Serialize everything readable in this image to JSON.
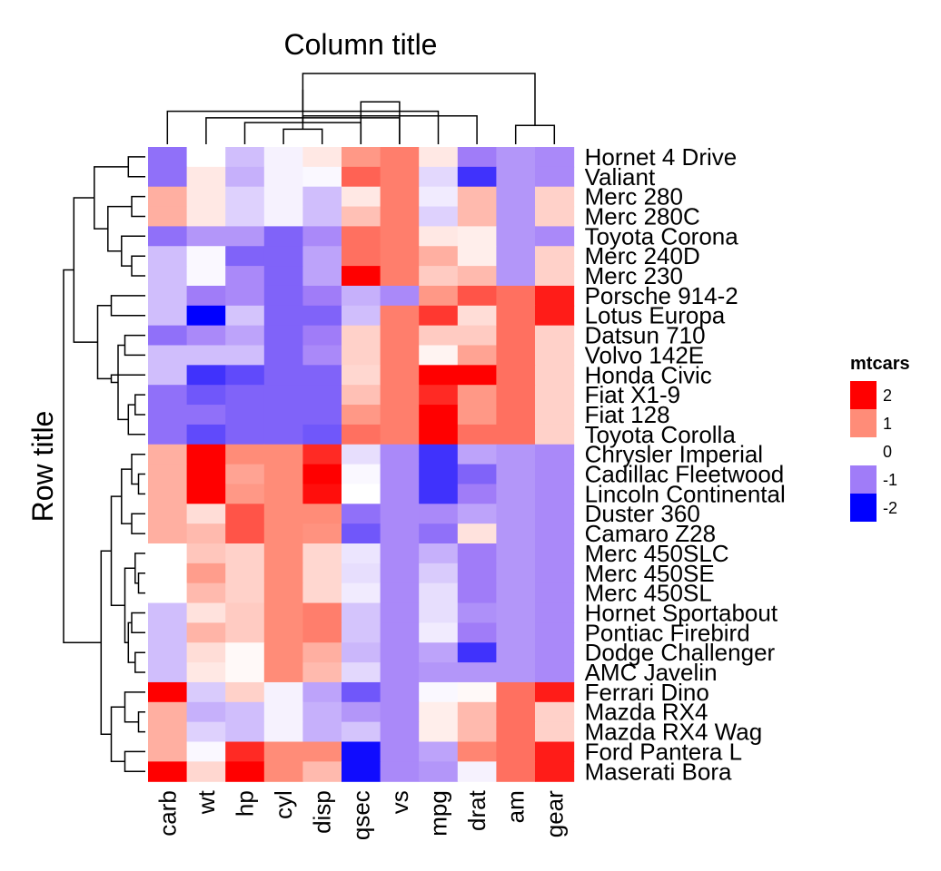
{
  "chart_data": {
    "type": "heatmap",
    "column_title": "Column title",
    "row_title": "Row title",
    "columns": [
      "carb",
      "wt",
      "hp",
      "cyl",
      "disp",
      "qsec",
      "vs",
      "mpg",
      "drat",
      "am",
      "gear"
    ],
    "rows": [
      "Hornet 4 Drive",
      "Valiant",
      "Merc 280",
      "Merc 280C",
      "Toyota Corona",
      "Merc 240D",
      "Merc 230",
      "Porsche 914-2",
      "Lotus Europa",
      "Datsun 710",
      "Volvo 142E",
      "Honda Civic",
      "Fiat X1-9",
      "Fiat 128",
      "Toyota Corolla",
      "Chrysler Imperial",
      "Cadillac Fleetwood",
      "Lincoln Continental",
      "Duster 360",
      "Camaro Z28",
      "Merc 450SLC",
      "Merc 450SE",
      "Merc 450SL",
      "Hornet Sportabout",
      "Pontiac Firebird",
      "Dodge Challenger",
      "AMC Javelin",
      "Ferrari Dino",
      "Mazda RX4",
      "Mazda RX4 Wag",
      "Ford Pantera L",
      "Maserati Bora"
    ],
    "values": [
      [
        -1.1,
        0.0,
        -0.5,
        -0.1,
        0.2,
        0.9,
        1.1,
        0.2,
        -1.0,
        -0.8,
        -0.9
      ],
      [
        -1.1,
        0.2,
        -0.6,
        -0.1,
        -0.05,
        1.3,
        1.1,
        -0.3,
        -1.6,
        -0.8,
        -0.9
      ],
      [
        0.7,
        0.2,
        -0.35,
        -0.1,
        -0.5,
        0.2,
        1.1,
        -0.15,
        0.6,
        -0.8,
        0.4
      ],
      [
        0.7,
        0.2,
        -0.35,
        -0.1,
        -0.5,
        0.55,
        1.1,
        -0.35,
        0.6,
        -0.8,
        0.4
      ],
      [
        -1.1,
        -0.8,
        -0.8,
        -1.2,
        -0.9,
        1.2,
        1.1,
        0.2,
        0.15,
        -0.8,
        -0.9
      ],
      [
        -0.5,
        -0.05,
        -1.2,
        -1.2,
        -0.7,
        1.2,
        1.1,
        0.7,
        0.15,
        -0.8,
        0.4
      ],
      [
        -0.5,
        -0.05,
        -0.9,
        -1.2,
        -0.7,
        2.8,
        1.1,
        0.45,
        0.6,
        -0.8,
        0.4
      ],
      [
        -0.5,
        -1.0,
        -0.9,
        -1.2,
        -1.0,
        -0.6,
        -0.9,
        0.9,
        1.4,
        1.2,
        1.8
      ],
      [
        -0.5,
        -2.0,
        -0.45,
        -1.2,
        -1.2,
        -0.5,
        1.1,
        1.6,
        0.3,
        1.2,
        1.8
      ],
      [
        -1.1,
        -0.9,
        -0.7,
        -1.2,
        -1.0,
        0.4,
        1.1,
        0.45,
        0.45,
        1.2,
        0.4
      ],
      [
        -0.5,
        -0.5,
        -0.5,
        -1.2,
        -0.9,
        0.4,
        1.1,
        0.1,
        0.8,
        1.2,
        0.4
      ],
      [
        -0.5,
        -1.6,
        -1.4,
        -1.2,
        -1.2,
        0.35,
        1.1,
        2.0,
        2.4,
        1.2,
        0.4
      ],
      [
        -1.1,
        -1.3,
        -1.2,
        -1.2,
        -1.2,
        0.55,
        1.1,
        1.7,
        0.9,
        1.2,
        0.4
      ],
      [
        -1.1,
        -1.1,
        -1.2,
        -1.2,
        -1.2,
        0.9,
        1.1,
        2.6,
        0.9,
        1.2,
        0.4
      ],
      [
        -1.1,
        -1.4,
        -1.2,
        -1.2,
        -1.3,
        1.2,
        1.1,
        2.6,
        1.2,
        1.2,
        0.4
      ],
      [
        0.7,
        2.2,
        1.0,
        1.0,
        1.7,
        -0.25,
        -0.9,
        -1.6,
        -0.7,
        -0.8,
        -0.9
      ],
      [
        0.7,
        2.4,
        0.8,
        1.0,
        2.0,
        -0.05,
        -0.9,
        -1.6,
        -1.2,
        -0.8,
        -0.9
      ],
      [
        0.7,
        2.3,
        0.9,
        1.0,
        1.9,
        0.0,
        -0.9,
        -1.6,
        -1.0,
        -0.8,
        -0.9
      ],
      [
        0.7,
        0.3,
        1.4,
        1.0,
        1.0,
        -1.1,
        -0.9,
        -0.9,
        -0.7,
        -0.8,
        -0.9
      ],
      [
        0.7,
        0.6,
        1.4,
        1.0,
        0.95,
        -1.3,
        -0.9,
        -1.1,
        0.25,
        -0.8,
        -0.9
      ],
      [
        0.0,
        0.5,
        0.4,
        1.0,
        0.35,
        -0.2,
        -0.9,
        -0.6,
        -1.0,
        -0.8,
        -0.9
      ],
      [
        0.0,
        0.85,
        0.4,
        1.0,
        0.35,
        -0.25,
        -0.9,
        -0.4,
        -1.0,
        -0.8,
        -0.9
      ],
      [
        0.0,
        0.6,
        0.4,
        1.0,
        0.35,
        -0.15,
        -0.9,
        -0.25,
        -1.0,
        -0.8,
        -0.9
      ],
      [
        -0.5,
        0.25,
        0.45,
        1.0,
        1.1,
        -0.45,
        -0.9,
        -0.25,
        -0.85,
        -0.8,
        -0.9
      ],
      [
        -0.5,
        0.65,
        0.45,
        1.0,
        1.1,
        -0.45,
        -0.9,
        -0.15,
        -1.0,
        -0.8,
        -0.9
      ],
      [
        -0.5,
        0.3,
        0.05,
        1.0,
        0.7,
        -0.55,
        -0.9,
        -0.7,
        -1.6,
        -0.8,
        -0.9
      ],
      [
        -0.5,
        0.2,
        0.05,
        1.0,
        0.6,
        -0.3,
        -0.9,
        -0.8,
        -0.8,
        -0.8,
        -0.9
      ],
      [
        2.0,
        -0.4,
        0.4,
        -0.1,
        -0.7,
        -1.3,
        -0.9,
        -0.05,
        0.05,
        1.2,
        1.8
      ],
      [
        0.7,
        -0.6,
        -0.5,
        -0.1,
        -0.6,
        -0.8,
        -0.9,
        0.15,
        0.6,
        1.2,
        0.4
      ],
      [
        0.7,
        -0.35,
        -0.5,
        -0.1,
        -0.6,
        -0.45,
        -0.9,
        0.15,
        0.6,
        1.2,
        0.4
      ],
      [
        0.7,
        -0.05,
        1.7,
        1.0,
        1.0,
        -1.9,
        -0.9,
        -0.7,
        1.05,
        1.2,
        1.8
      ],
      [
        2.6,
        0.35,
        2.6,
        1.0,
        0.6,
        -1.9,
        -0.9,
        -0.8,
        -0.1,
        1.2,
        1.8
      ]
    ],
    "legend": {
      "title": "mtcars",
      "breaks": [
        2,
        1,
        0,
        -1,
        -2
      ],
      "labels": [
        "2",
        "1",
        "0",
        "-1",
        "-2"
      ],
      "colors": [
        "#ff0000",
        "#ff8c78",
        "#ffffff",
        "#a07cf8",
        "#0000ff"
      ]
    },
    "row_dendrogram": {
      "leaf_order": [
        0,
        1,
        2,
        3,
        4,
        5,
        6,
        7,
        8,
        9,
        10,
        11,
        12,
        13,
        14,
        15,
        16,
        17,
        18,
        19,
        20,
        21,
        22,
        23,
        24,
        25,
        26,
        27,
        28,
        29,
        30,
        31
      ],
      "merges": [
        [
          "r0",
          "r1",
          0.05
        ],
        [
          "r2",
          "r3",
          0.04
        ],
        [
          "r5",
          "r6",
          0.04
        ],
        [
          "c2",
          "r4",
          0.07
        ],
        [
          "c1",
          "c3",
          0.11
        ],
        [
          "c0",
          "c4",
          0.15
        ],
        [
          "r9",
          "r10",
          0.06
        ],
        [
          "r12",
          "r13",
          0.03
        ],
        [
          "c7",
          "r14",
          0.05
        ],
        [
          "c6",
          "c8",
          0.08
        ],
        [
          "c9",
          "r11",
          0.1
        ],
        [
          "r7",
          "r8",
          0.1
        ],
        [
          "c11",
          "c10",
          0.14
        ],
        [
          "c5",
          "c12",
          0.21
        ],
        [
          "r16",
          "r17",
          0.02
        ],
        [
          "r15",
          "c14",
          0.04
        ],
        [
          "r18",
          "r19",
          0.04
        ],
        [
          "c15",
          "c16",
          0.07
        ],
        [
          "r21",
          "r22",
          0.02
        ],
        [
          "r20",
          "c18",
          0.03
        ],
        [
          "r23",
          "r24",
          0.04
        ],
        [
          "r25",
          "r26",
          0.03
        ],
        [
          "c20",
          "c21",
          0.05
        ],
        [
          "c19",
          "c22",
          0.06
        ],
        [
          "c17",
          "c23",
          0.1
        ],
        [
          "r28",
          "r29",
          0.02
        ],
        [
          "r27",
          "c25",
          0.06
        ],
        [
          "r30",
          "r31",
          0.06
        ],
        [
          "c26",
          "c27",
          0.1
        ],
        [
          "c24",
          "c28",
          0.13
        ],
        [
          "c13",
          "c29",
          0.24
        ]
      ]
    },
    "column_dendrogram": {
      "merges": [
        [
          "k3",
          "k4",
          0.16
        ],
        [
          "k2",
          "k5",
          0.23
        ],
        [
          "k1",
          "k6",
          0.28
        ],
        [
          "k0",
          "k7",
          0.35
        ],
        [
          "k9",
          "k10",
          0.2
        ],
        [
          "k8",
          "k11",
          0.3
        ],
        [
          "k5",
          "k6",
          0.45
        ],
        [
          "k12",
          "k13",
          0.58
        ],
        [
          "k14",
          "k15",
          0.75
        ]
      ]
    }
  }
}
